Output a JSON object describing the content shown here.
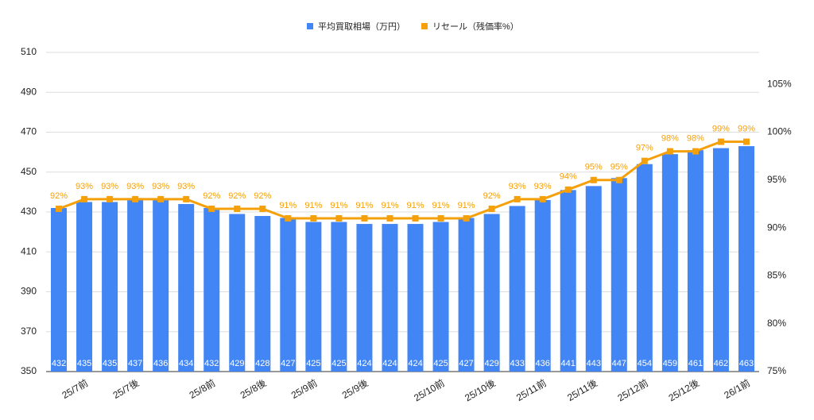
{
  "chart_data": {
    "type": "bar-line",
    "categories": [
      null,
      "25/7前",
      null,
      "25/7後",
      null,
      null,
      "25/8前",
      null,
      "25/8後",
      null,
      "25/9前",
      null,
      "25/9後",
      null,
      null,
      "25/10前",
      null,
      "25/10後",
      null,
      "25/11前",
      null,
      "25/11後",
      null,
      "25/12前",
      null,
      "25/12後",
      null,
      "26/1前"
    ],
    "series": [
      {
        "name": "平均買取相場（万円）",
        "color": "#4285f4",
        "type": "bar",
        "values": [
          432,
          435,
          435,
          437,
          436,
          434,
          432,
          429,
          428,
          427,
          425,
          425,
          424,
          424,
          424,
          425,
          427,
          429,
          433,
          436,
          441,
          443,
          447,
          454,
          459,
          461,
          462,
          463
        ]
      },
      {
        "name": "リセール（残価率%）",
        "color": "#f4a00b",
        "type": "line",
        "axis": "y2",
        "values": [
          92,
          93,
          93,
          93,
          93,
          93,
          92,
          92,
          92,
          91,
          91,
          91,
          91,
          91,
          91,
          91,
          91,
          92,
          93,
          93,
          94,
          95,
          95,
          97,
          98,
          98,
          99,
          99
        ],
        "value_labels": [
          "92%",
          "93%",
          "93%",
          "93%",
          "93%",
          "93%",
          "92%",
          "92%",
          "92%",
          "91%",
          "91%",
          "91%",
          "91%",
          "91%",
          "91%",
          "91%",
          "91%",
          "92%",
          "93%",
          "93%",
          "94%",
          "95%",
          "95%",
          "97%",
          "98%",
          "98%",
          "99%",
          "99%"
        ]
      }
    ],
    "ylim": [
      350,
      510
    ],
    "yticks": [
      350,
      370,
      390,
      410,
      430,
      450,
      470,
      490,
      510
    ],
    "y2lim": [
      75,
      108.33
    ],
    "y2ticks": [
      {
        "value": 75,
        "label": "75%"
      },
      {
        "value": 80,
        "label": "80%"
      },
      {
        "value": 85,
        "label": "85%"
      },
      {
        "value": 90,
        "label": "90%"
      },
      {
        "value": 95,
        "label": "95%"
      },
      {
        "value": 100,
        "label": "100%"
      },
      {
        "value": 105,
        "label": "105%"
      }
    ],
    "legend": "top",
    "grid": true
  }
}
